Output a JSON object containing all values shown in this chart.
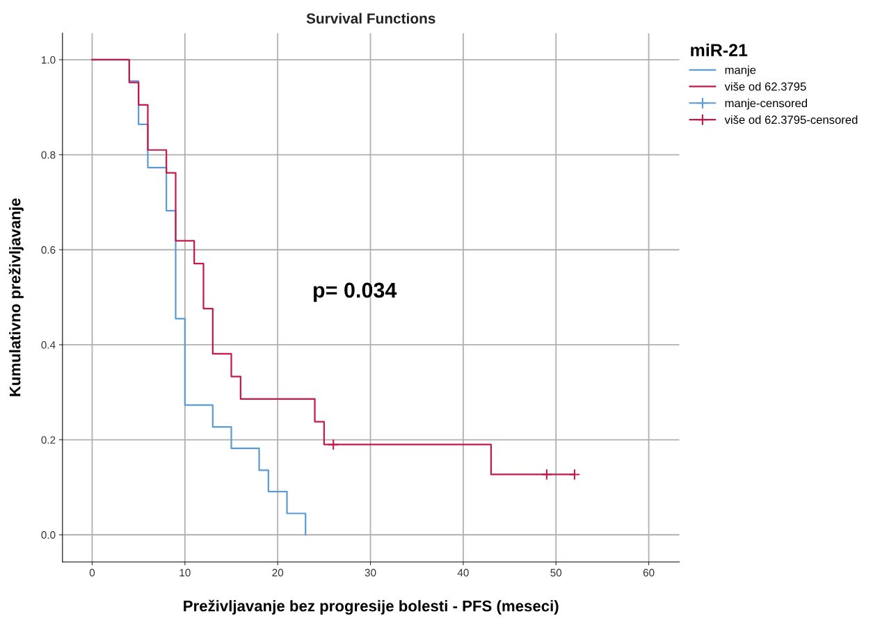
{
  "chart_data": {
    "type": "step",
    "title": "Survival Functions",
    "xlabel": "Preživljavanje bez progresije bolesti - PFS (meseci)",
    "ylabel": "Kumulativno preživljavanje",
    "legend_title": "miR-21",
    "legend": "top right",
    "grid": true,
    "line_style": "solid",
    "xlim": [
      -3.2,
      63.3
    ],
    "ylim": [
      -0.057,
      1.056
    ],
    "xticks": [
      0,
      10,
      20,
      30,
      40,
      50,
      60
    ],
    "yticks": [
      {
        "value": 0,
        "label": "0.0"
      },
      {
        "value": 0.2,
        "label": "0.2"
      },
      {
        "value": 0.4,
        "label": "0.4"
      },
      {
        "value": 0.6,
        "label": "0.6"
      },
      {
        "value": 0.8,
        "label": "0.8"
      },
      {
        "value": 1.0,
        "label": "1.0"
      }
    ],
    "annotations": [
      "p= 0.034"
    ],
    "series": [
      {
        "name": "manje",
        "color": "#5b9bd5",
        "x": [
          0,
          4,
          5,
          6,
          8,
          9,
          10,
          13,
          15,
          18,
          19,
          21,
          23
        ],
        "values": [
          1.0,
          0.955,
          0.864,
          0.773,
          0.682,
          0.455,
          0.273,
          0.227,
          0.182,
          0.136,
          0.091,
          0.045,
          0.0
        ]
      },
      {
        "name": "više od 62.3795",
        "color": "#c8174a",
        "x": [
          0,
          4,
          5,
          6,
          8,
          9,
          11,
          12,
          13,
          15,
          16,
          24,
          25,
          43,
          52
        ],
        "values": [
          1.0,
          0.952,
          0.905,
          0.81,
          0.762,
          0.619,
          0.571,
          0.476,
          0.381,
          0.333,
          0.286,
          0.238,
          0.19,
          0.127,
          0.127
        ]
      },
      {
        "name": "manje-censored",
        "type": "scatter",
        "marker": "cross",
        "color": "#5b9bd5"
      },
      {
        "name": "više od 62.3795-censored",
        "type": "scatter",
        "marker": "cross",
        "color": "#c8174a",
        "x": [
          26,
          49,
          52
        ],
        "values": [
          0.19,
          0.127,
          0.127
        ]
      }
    ]
  }
}
